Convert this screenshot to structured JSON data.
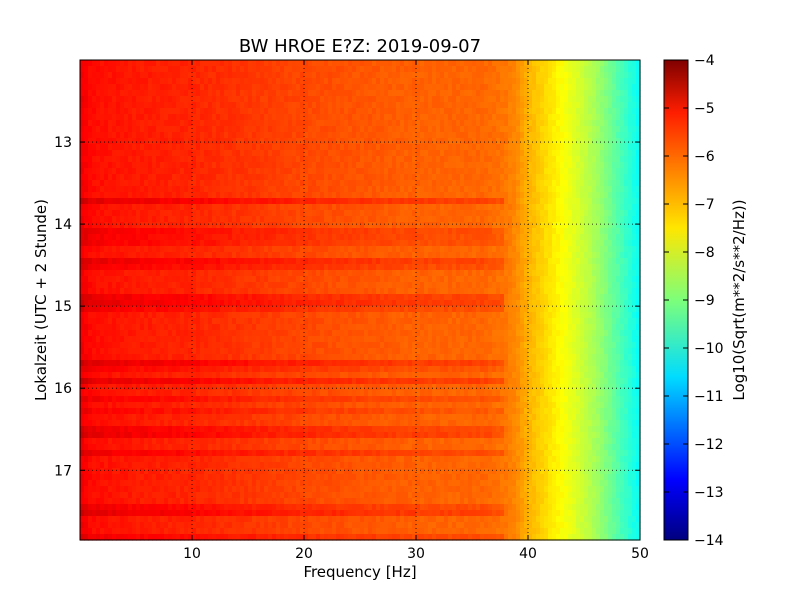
{
  "chart_data": {
    "type": "heatmap",
    "title": "BW HROE E?Z: 2019-09-07",
    "xlabel": "Frequency [Hz]",
    "ylabel": "Lokalzeit (UTC + 2 Stunde)",
    "xlim": [
      0,
      50
    ],
    "ylim": [
      17.85,
      12.0
    ],
    "y_inverted": true,
    "x_ticks": [
      10,
      20,
      30,
      40,
      50
    ],
    "x_tick_labels": [
      "10",
      "20",
      "30",
      "40",
      "50"
    ],
    "y_ticks": [
      13,
      14,
      15,
      16,
      17
    ],
    "y_tick_labels": [
      "13",
      "14",
      "15",
      "16",
      "17"
    ],
    "grid": true,
    "colormap": "jet",
    "colorbar": {
      "label": "Log10(Sqrt(m**2/s**2/Hz))",
      "range": [
        -14,
        -4
      ],
      "ticks": [
        -4,
        -5,
        -6,
        -7,
        -8,
        -9,
        -10,
        -11,
        -12,
        -13,
        -14
      ],
      "tick_labels": [
        "−4",
        "−5",
        "−6",
        "−7",
        "−8",
        "−9",
        "−10",
        "−11",
        "−12",
        "−13",
        "−14"
      ]
    },
    "frequency_profile": {
      "frequency_hz": [
        0,
        0.5,
        1,
        2,
        5,
        10,
        20,
        30,
        36,
        38,
        39,
        40,
        42,
        44,
        46,
        48,
        50
      ],
      "log10_amplitude": [
        -5.1,
        -5.2,
        -5.35,
        -5.4,
        -5.5,
        -5.6,
        -5.95,
        -6.2,
        -6.25,
        -6.4,
        -6.6,
        -7.0,
        -7.5,
        -8.0,
        -8.6,
        -9.4,
        -10.2
      ]
    }
  }
}
